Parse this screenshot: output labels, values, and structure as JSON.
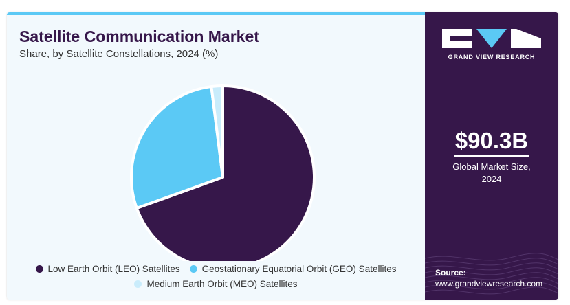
{
  "header": {
    "title": "Satellite Communication Market",
    "subtitle": "Share, by Satellite Constellations, 2024 (%)"
  },
  "chart_data": {
    "type": "pie",
    "title": "Satellite Communication Market",
    "subtitle": "Share, by Satellite Constellations, 2024 (%)",
    "categories": [
      "Low Earth Orbit (LEO) Satellites",
      "Geostationary Equatorial Orbit (GEO) Satellites",
      "Medium Earth Orbit (MEO) Satellites"
    ],
    "values": [
      69.5,
      28.5,
      2.0
    ],
    "colors": [
      "#36174a",
      "#5bc9f5",
      "#c9ecfb"
    ],
    "legend_position": "bottom"
  },
  "legend": {
    "items": [
      {
        "label": "Low Earth Orbit (LEO) Satellites",
        "color": "#36174a"
      },
      {
        "label": "Geostationary Equatorial Orbit (GEO) Satellites",
        "color": "#5bc9f5"
      },
      {
        "label": "Medium Earth Orbit (MEO) Satellites",
        "color": "#c9ecfb"
      }
    ]
  },
  "sidebar": {
    "logo_text": "GRAND VIEW RESEARCH",
    "market_size": "$90.3B",
    "market_label_line1": "Global Market Size,",
    "market_label_line2": "2024",
    "source_label": "Source:",
    "source_url": "www.grandviewresearch.com"
  },
  "colors": {
    "brand_dark": "#36174a",
    "accent": "#5bc9f5",
    "panel_bg": "#f2f9fd"
  }
}
